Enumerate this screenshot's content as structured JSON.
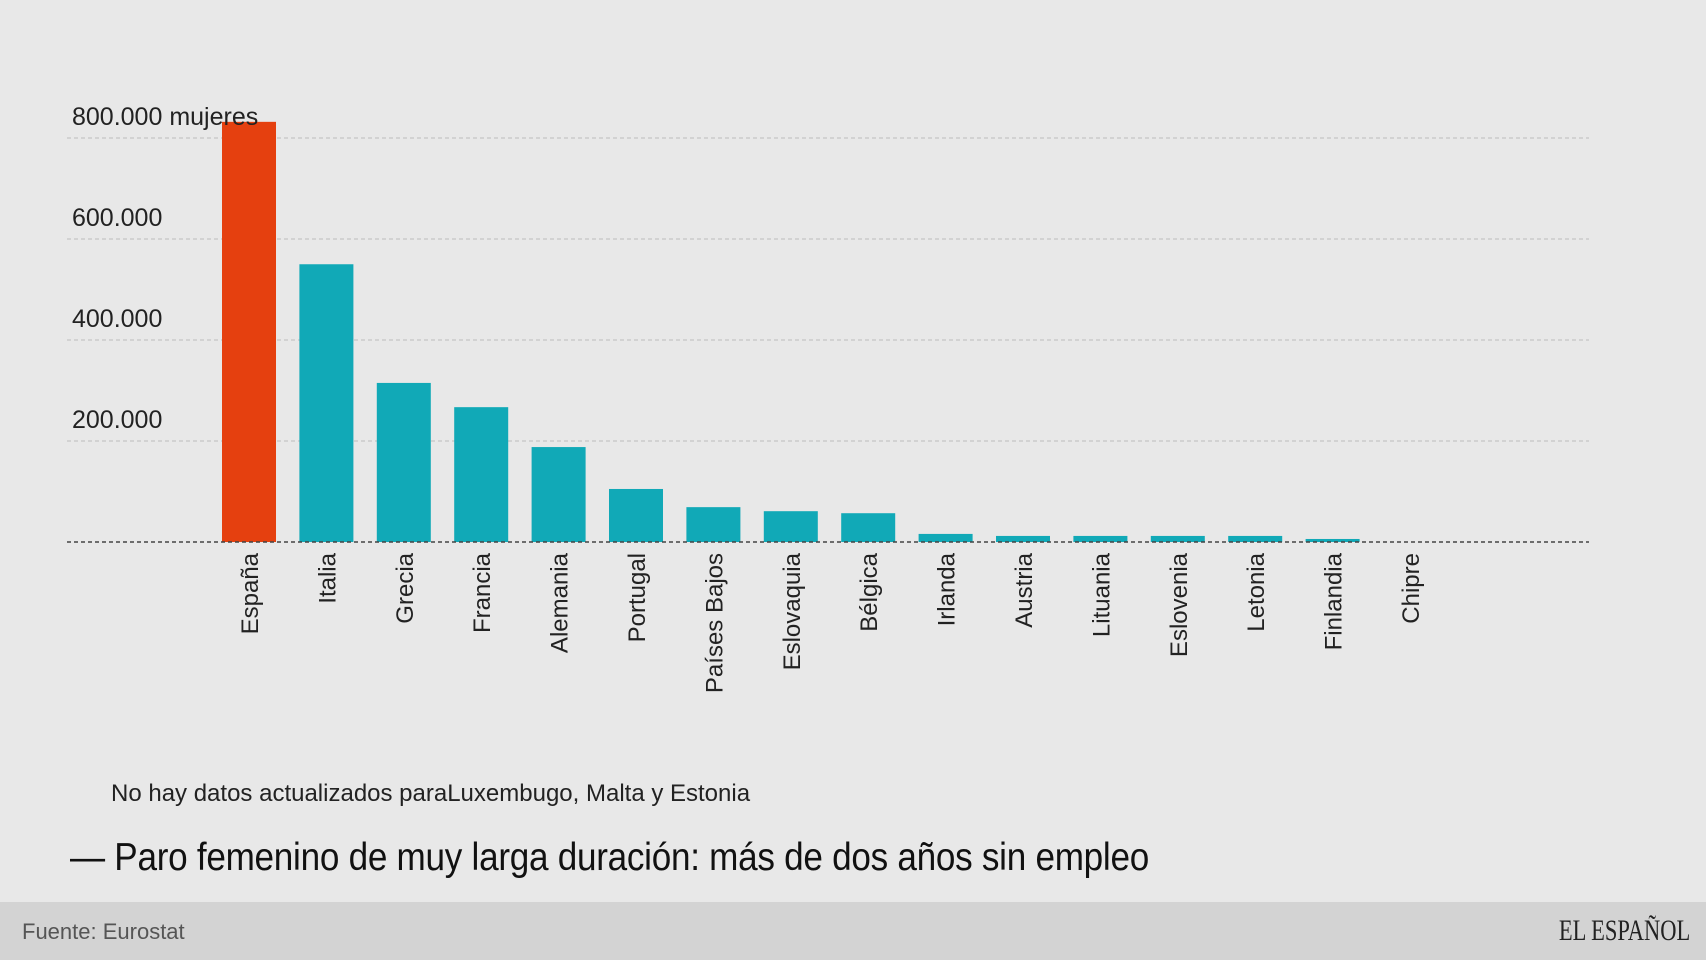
{
  "chart_data": {
    "type": "bar",
    "title": "Paro femenino de muy larga duración: más de dos años sin empleo",
    "ylabel_unit": "mujeres",
    "ylim": [
      0,
      800000
    ],
    "yticks": [
      200000,
      400000,
      600000,
      800000
    ],
    "ytick_labels": [
      "200.000",
      "400.000",
      "600.000",
      "800.000 mujeres"
    ],
    "grid": true,
    "categories": [
      "España",
      "Italia",
      "Grecia",
      "Francia",
      "Alemania",
      "Portugal",
      "Países Bajos",
      "Eslovaquia",
      "Bélgica",
      "Irlanda",
      "Austria",
      "Lituania",
      "Eslovenia",
      "Letonia",
      "Finlandia",
      "Chipre"
    ],
    "values": [
      832000,
      550000,
      315000,
      267000,
      188000,
      105000,
      69000,
      61000,
      57000,
      16000,
      12000,
      12000,
      12000,
      12000,
      6000,
      0
    ],
    "highlight_color": "#e5400f",
    "bar_color": "#11a9b7",
    "highlight_index": 0
  },
  "note": "No hay datos actualizados paraLuxembugo, Malta y Estonia",
  "title": "— Paro femenino de muy larga duración: más de dos años sin empleo",
  "footer": {
    "source": "Fuente: Eurostat",
    "logo": "EL ESPAÑOL"
  }
}
